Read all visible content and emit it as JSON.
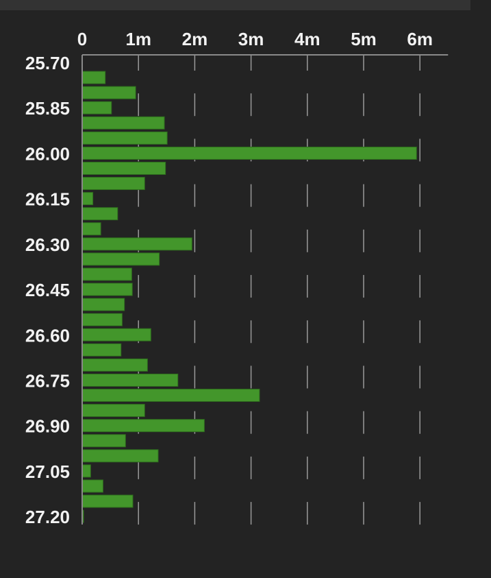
{
  "chart_data": {
    "type": "bar",
    "orientation": "horizontal",
    "title": "",
    "xlabel": "",
    "ylabel": "",
    "xlim": [
      0,
      6.5
    ],
    "x_ticks": [
      0,
      1,
      2,
      3,
      4,
      5,
      6
    ],
    "x_tick_labels": [
      "0",
      "1m",
      "2m",
      "3m",
      "4m",
      "5m",
      "6m"
    ],
    "y_tick_labels": [
      "25.70",
      "25.85",
      "26.00",
      "26.15",
      "26.30",
      "26.45",
      "26.60",
      "26.75",
      "26.90",
      "27.05",
      "27.20"
    ],
    "categories": [
      "25.70",
      "25.75",
      "25.80",
      "25.85",
      "25.90",
      "25.95",
      "26.00",
      "26.05",
      "26.10",
      "26.15",
      "26.20",
      "26.25",
      "26.30",
      "26.35",
      "26.40",
      "26.45",
      "26.50",
      "26.55",
      "26.60",
      "26.65",
      "26.70",
      "26.75",
      "26.80",
      "26.85",
      "26.90",
      "26.95",
      "27.00",
      "27.05",
      "27.10",
      "27.15",
      "27.20"
    ],
    "values": [
      0,
      0.41,
      0.95,
      0.52,
      1.46,
      1.51,
      5.94,
      1.48,
      1.11,
      0.19,
      0.63,
      0.33,
      1.95,
      1.37,
      0.88,
      0.89,
      0.75,
      0.71,
      1.22,
      0.69,
      1.16,
      1.7,
      3.15,
      1.11,
      2.17,
      0.77,
      1.35,
      0.15,
      0.37,
      0.9,
      0.02
    ],
    "value_unit": "millions",
    "grid": true,
    "legend": "none",
    "colors": {
      "bar": "#43962b",
      "bar_edge": "#2f6e1e",
      "grid": "#9a9a9a",
      "axis": "#8a8a8a",
      "text": "#f2f2f2",
      "background": "#232323"
    }
  }
}
